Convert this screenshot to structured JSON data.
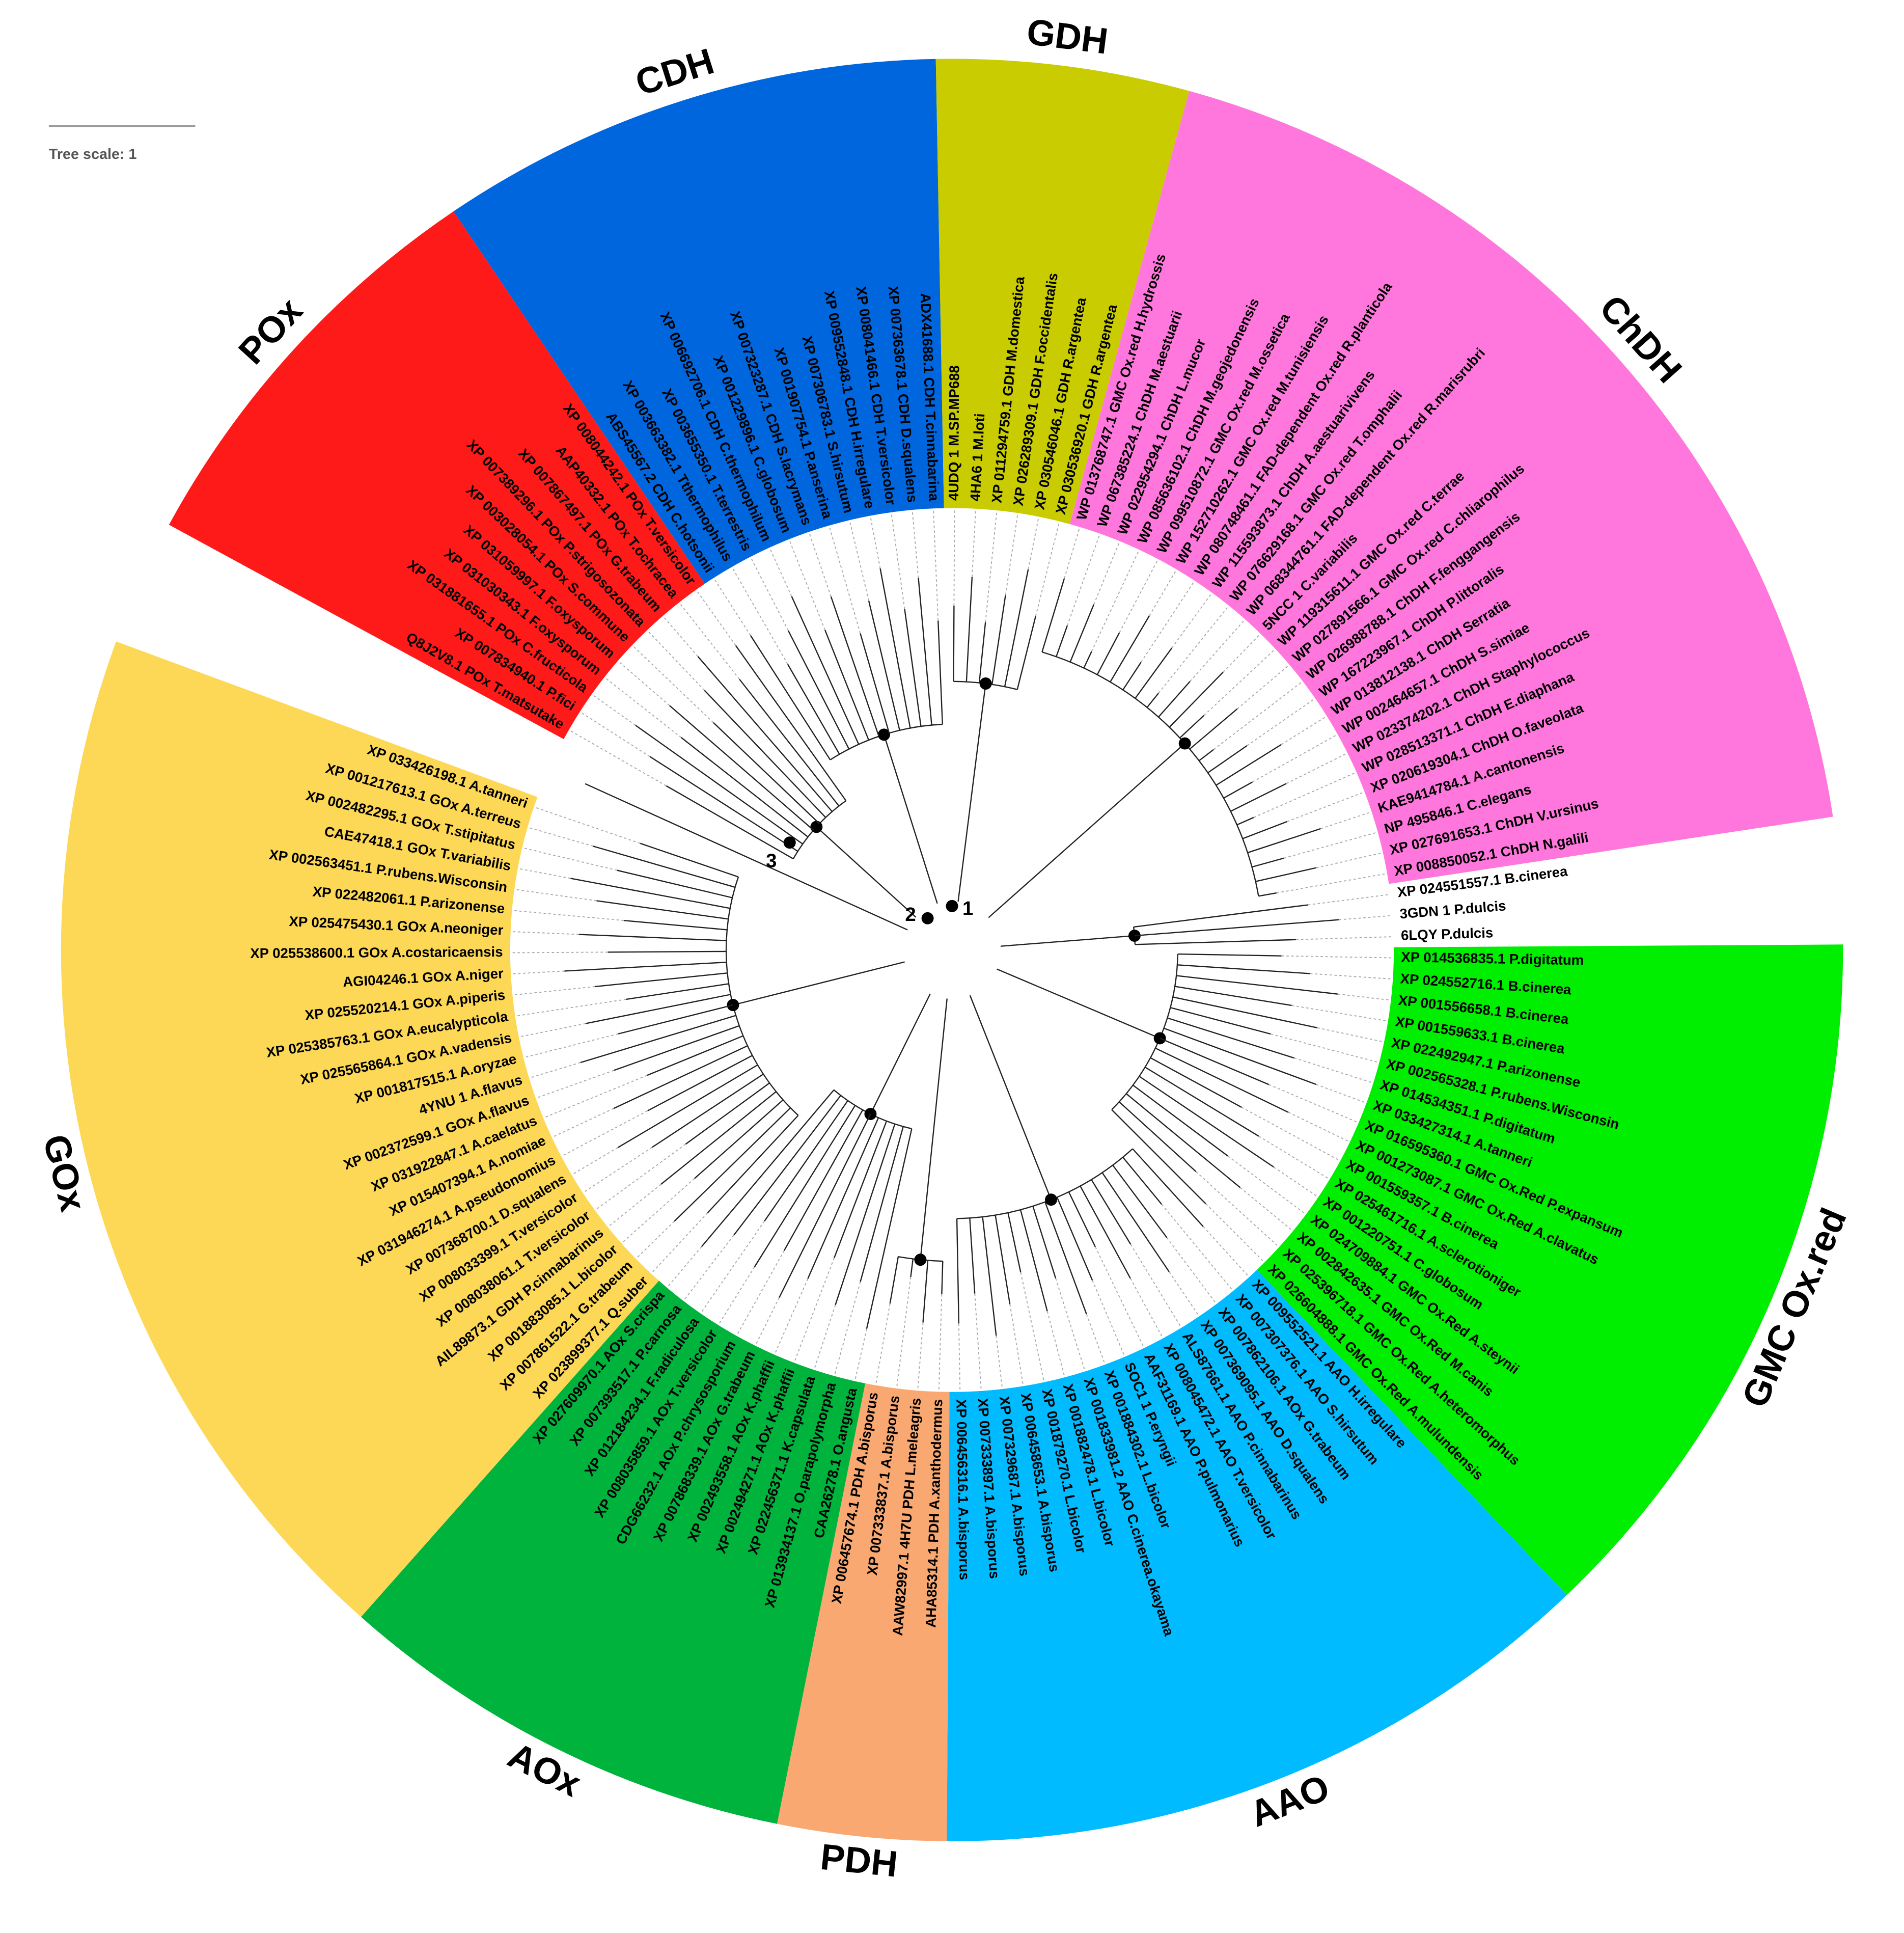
{
  "tree_scale": "Tree scale: 1",
  "node_labels": [
    "1",
    "2",
    "3"
  ],
  "clades": [
    {
      "name": "POx",
      "color": "#ff1a1a",
      "leaves": [
        "Q8J2V8.1 POx T.matsutake",
        "XP 007834940.1 P.fici",
        "XP 031881655.1 POx C.fructicola",
        "XP 031030343.1 F.oxysporum",
        "XP 031059997.1 F.oxysporum",
        "XP 003028054.1 POx S.commune",
        "XP 007389296.1 POx P.strigosozonata",
        "XP 007867497.1 POx G.trabeum",
        "AAP40332.1 POx T.ochracea",
        "XP 008044242.1 POx T.versicolor"
      ]
    },
    {
      "name": "CDH",
      "color": "#0066dd",
      "leaves": [
        "ABS45567.2 CDH C.hotsonii",
        "XP 003663382.1 Tthermophilus",
        "XP 003655350.1 T.terrestris",
        "XP 006692706.1 CDH C.thermophilum",
        "XP 001229896.1 C.globosum",
        "XP 007323287.1 CDH S.lacrymans",
        "XP 001907754.1 P.anserina",
        "XP 007306783.1 S.hirsutum",
        "XP 009552848.1 CDH H.irregulare",
        "XP 008041466.1 CDH T.versicolor",
        "XP 007363678.1 CDH D.squalens",
        "ADX41688.1 CDH T.cinnabarina"
      ]
    },
    {
      "name": "GDH",
      "color": "#c8cc00",
      "leaves": [
        "4UDQ 1 M.SP.MP688",
        "4HA6 1 M.loti",
        "XP 011294759.1 GDH M.domestica",
        "XP 026289309.1 GDH F.occidentalis",
        "XP 030546046.1 GDH R.argentea",
        "XP 030536920.1 GDH R.argentea"
      ]
    },
    {
      "name": "ChDH",
      "color": "#ff77dd",
      "leaves": [
        "WP 013768747.1 GMC Ox.red H.hydrossis",
        "WP 067385224.1 ChDH M.aestuarii",
        "WP 022954294.1 ChDH L.mucor",
        "WP 085636102.1 ChDH M.geojedonensis",
        "WP 099510872.1 GMC Ox.red M.ossetica",
        "WP 152710262.1 GMC Ox.red M.tunisiensis",
        "WP 080748461.1 FAD-dependent Ox.red R.planticola",
        "WP 115593873.1 ChDH A.aestuarivivens",
        "WP 076629168.1 GMC Ox.red T.omphalii",
        "WP 068344761.1 FAD-dependent Ox.red R.marisrubri",
        "5NCC 1 C.variabilis",
        "WP 119315611.1 GMC Ox.red C.terrae",
        "WP 027891566.1 GMC Ox.red C.chliarophilus",
        "WP 026988788.1 ChDH F.fenggangensis",
        "WP 167223967.1 ChDH P.littoralis",
        "WP 013812138.1 ChDH Serratia",
        "WP 002464657.1 ChDH S.simiae",
        "WP 023374202.1 ChDH Staphylococcus",
        "WP 028513371.1 ChDH E.diaphana",
        "XP 020619304.1 ChDH O.faveolata",
        "KAE9414784.1 A.cantonensis",
        "NP 495846.1 C.elegans",
        "XP 027691653.1 ChDH V.ursinus",
        "XP 008850052.1 ChDH N.galili"
      ]
    },
    {
      "color": "#ffffff",
      "leaves": [
        "XP 024551557.1 B.cinerea",
        "3GDN 1 P.dulcis",
        "6LQY P.dulcis"
      ]
    },
    {
      "name": "GMC Ox.red",
      "color": "#00ee00",
      "leaves": [
        "XP 014536835.1 P.digitatum",
        "XP 024552716.1 B.cinerea",
        "XP 001556658.1 B.cinerea",
        "XP 001559633.1 B.cinerea",
        "XP 022492947.1 P.arizonense",
        "XP 002565328.1 P.rubens.Wisconsin",
        "XP 014534351.1 P.digitatum",
        "XP 033427314.1 A.tanneri",
        "XP 016595360.1 GMC Ox.Red P.expansum",
        "XP 001273087.1 GMC Ox.Red A.clavatus",
        "XP 001559357.1 B.cinerea",
        "XP 025461716.1 A.sclerotioniger",
        "XP 001220751.1 C.globosum",
        "XP 024709884.1 GMC Ox.Red A.steynii",
        "XP 002842635.1 GMC Ox.Red M.canis",
        "XP 025396718.1 GMC Ox.Red A.heteromorphus",
        "XP 026604888.1 GMC Ox.Red A.mulundensis"
      ]
    },
    {
      "name": "AAO",
      "color": "#00bbff",
      "leaves": [
        "XP 009552521.1 AAO H.irregulare",
        "XP 007307376.1 AAO S.hirsutum",
        "XP 007862106.1 AOx G.trabeum",
        "XP 007369095.1 AAO D.squalens",
        "ALS87661.1 AAO P.cinnabarinus",
        "XP 008045472.1 AAO T.versicolor",
        "AAF31169.1 AAO P.pulmonarius",
        "SOC1 1 P.eryngii",
        "XP 001884302.1 L.bicolor",
        "XP 001833981.2 AAO C.cinerea.okayama",
        "XP 001882478.1 L.bicolor",
        "XP 001879270.1 L.bicolor",
        "XP 006458653.1 A.bisporus",
        "XP 007329687.1 A.bisporus",
        "XP 007333897.1 A.bisporus",
        "XP 006456316.1 A.bisporus"
      ]
    },
    {
      "name": "PDH",
      "color": "#f8a870",
      "leaves": [
        "AHA85314.1 PDH A.xanthodermus",
        "AAW82997.1 4H7U PDH L.meleagris",
        "XP 007333837.1 A.bisporus",
        "XP 006457674.1 PDH A.bisporus"
      ]
    },
    {
      "name": "AOx",
      "color": "#00b33c",
      "leaves": [
        "CAA26278.1 O.angusta",
        "XP 013934137.1 O.parapolymorpha",
        "XP 022456371.1 K.capsulata",
        "XP 002494271.1 AOx K.phaffii",
        "XP 002493558.1 AOx K.phaffii",
        "XP 007868339.1 AOx G.trabeum",
        "CDG66232.1 AOx P.chrysosporium",
        "XP 008035859.1 AOx T.versicolor",
        "XP 012184234.1 F.radiculosa",
        "XP 007393517.1 P.carnosa",
        "XP 027609970.1 AOx S.crispa"
      ]
    },
    {
      "name": "GOx",
      "color": "#fcd856",
      "leaves": [
        "XP 023899377.1 Q.suber",
        "XP 007861522.1 G.trabeum",
        "XP 001883085.1 L.bicolor",
        "AIL89873.1 GDH P.cinnabarinus",
        "XP 008038061.1 T.versicolor",
        "XP 008033399.1 T.versicolor",
        "XP 007368700.1 D.squalens",
        "XP 031946274.1 A.pseudonomius",
        "XP 015407394.1 A.nomiae",
        "XP 031922847.1 A.caelatus",
        "XP 002372599.1 GOx A.flavus",
        "4YNU 1 A.flavus",
        "XP 001817515.1 A.oryzae",
        "XP 025565864.1 GOx A.vadensis",
        "XP 025385763.1 GOx A.eucalypticola",
        "XP 025520214.1 GOx A.piperis",
        "AGI04246.1 GOx A.niger",
        "XP 025538600.1 GOx A.costaricaensis",
        "XP 025475430.1 GOx A.neoniger",
        "XP 022482061.1 P.arizonense",
        "XP 002563451.1 P.rubens.Wisconsin",
        "CAE47418.1 GOx T.variabilis",
        "XP 002482295.1 GOx T.stipitatus",
        "XP 001217613.1 GOx A.terreus",
        "XP 033426198.1 A.tanneri"
      ]
    }
  ]
}
